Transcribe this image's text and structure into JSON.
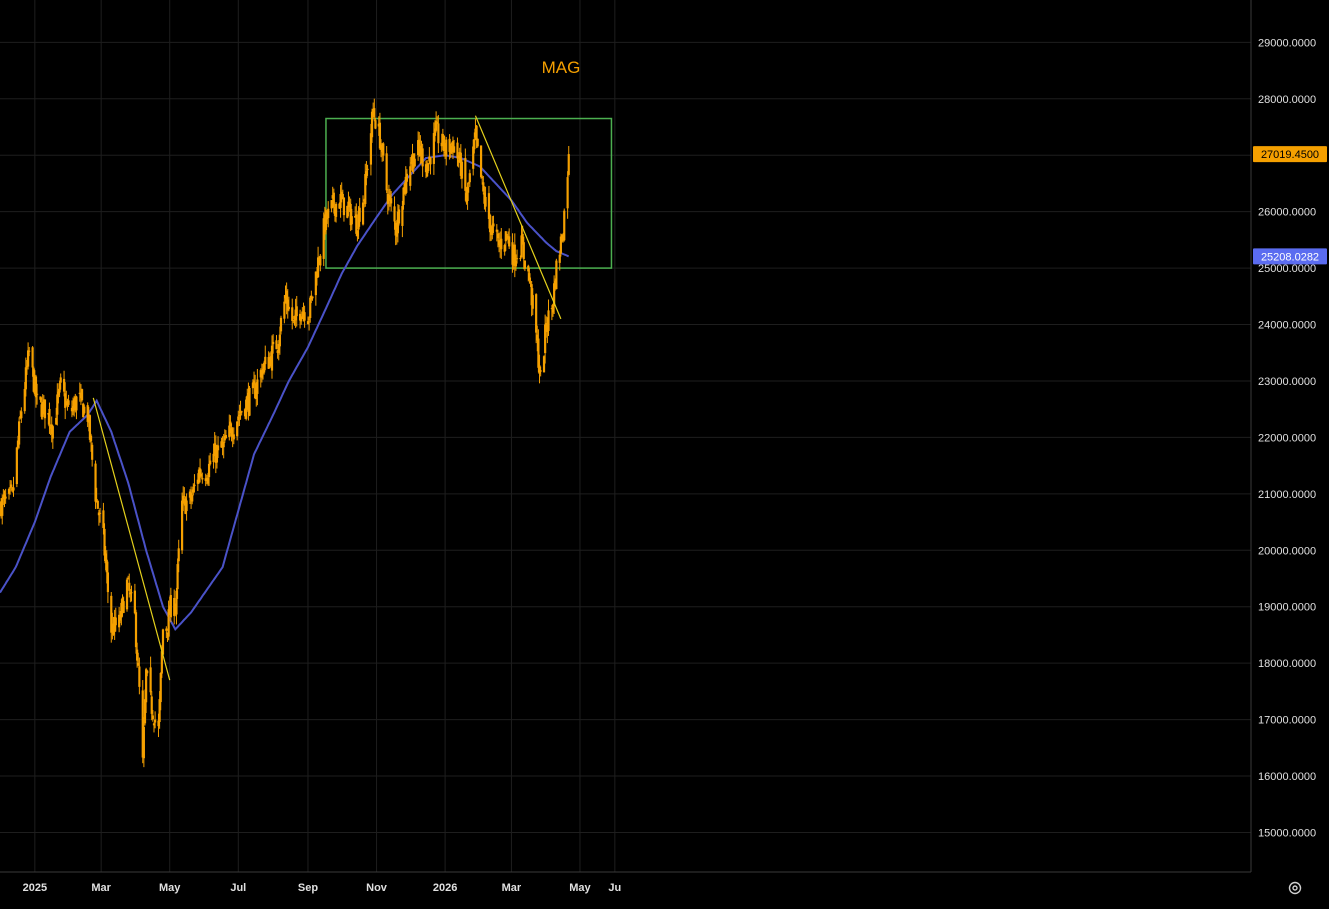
{
  "chart_data": {
    "type": "candlestick",
    "title": "MAG",
    "x_tick_labels": [
      "2025",
      "Mar",
      "May",
      "Jul",
      "Sep",
      "Nov",
      "2026",
      "Mar",
      "May",
      "Ju"
    ],
    "y_tick_labels": [
      "15000.0000",
      "16000.0000",
      "17000.0000",
      "18000.0000",
      "19000.0000",
      "20000.0000",
      "21000.0000",
      "22000.0000",
      "23000.0000",
      "24000.0000",
      "25000.0000",
      "26000.0000",
      "27000.0000",
      "28000.0000",
      "29000.0000"
    ],
    "ylim": [
      14300,
      29750
    ],
    "grid": true,
    "last_price_label": "27019.4500",
    "ma_value_label": "25208.0282",
    "start_date": "2024-12-01",
    "close_anchors": [
      [
        "2024-12-01",
        20800
      ],
      [
        "2024-12-12",
        20950
      ],
      [
        "2024-12-20",
        22500
      ],
      [
        "2024-12-27",
        23500
      ],
      [
        "2025-01-03",
        22600
      ],
      [
        "2025-01-10",
        22500
      ],
      [
        "2025-01-17",
        22200
      ],
      [
        "2025-01-24",
        22900
      ],
      [
        "2025-02-01",
        22400
      ],
      [
        "2025-02-08",
        22700
      ],
      [
        "2025-02-17",
        22400
      ],
      [
        "2025-02-24",
        21000
      ],
      [
        "2025-03-03",
        20200
      ],
      [
        "2025-03-10",
        18600
      ],
      [
        "2025-03-17",
        18700
      ],
      [
        "2025-03-24",
        19400
      ],
      [
        "2025-03-31",
        18800
      ],
      [
        "2025-04-04",
        17500
      ],
      [
        "2025-04-07",
        16200
      ],
      [
        "2025-04-10",
        17800
      ],
      [
        "2025-04-14",
        17300
      ],
      [
        "2025-04-21",
        16800
      ],
      [
        "2025-04-25",
        18600
      ],
      [
        "2025-04-29",
        18700
      ],
      [
        "2025-05-03",
        19100
      ],
      [
        "2025-05-06",
        19000
      ],
      [
        "2025-05-12",
        20800
      ],
      [
        "2025-05-20",
        20900
      ],
      [
        "2025-05-27",
        21400
      ],
      [
        "2025-06-03",
        21400
      ],
      [
        "2025-06-10",
        21700
      ],
      [
        "2025-06-17",
        21800
      ],
      [
        "2025-06-24",
        22100
      ],
      [
        "2025-07-01",
        22400
      ],
      [
        "2025-07-08",
        22600
      ],
      [
        "2025-07-15",
        22800
      ],
      [
        "2025-07-22",
        23200
      ],
      [
        "2025-07-29",
        23400
      ],
      [
        "2025-08-05",
        23700
      ],
      [
        "2025-08-12",
        24500
      ],
      [
        "2025-08-19",
        24000
      ],
      [
        "2025-08-26",
        24300
      ],
      [
        "2025-09-02",
        24200
      ],
      [
        "2025-09-09",
        25000
      ],
      [
        "2025-09-16",
        25800
      ],
      [
        "2025-09-23",
        26100
      ],
      [
        "2025-09-30",
        26200
      ],
      [
        "2025-10-07",
        26000
      ],
      [
        "2025-10-14",
        25800
      ],
      [
        "2025-10-21",
        26300
      ],
      [
        "2025-10-29",
        27800
      ],
      [
        "2025-11-04",
        27300
      ],
      [
        "2025-11-10",
        26400
      ],
      [
        "2025-11-18",
        25700
      ],
      [
        "2025-11-24",
        26300
      ],
      [
        "2025-12-01",
        26900
      ],
      [
        "2025-12-09",
        27100
      ],
      [
        "2025-12-16",
        26800
      ],
      [
        "2025-12-24",
        27400
      ],
      [
        "2026-01-01",
        27100
      ],
      [
        "2026-01-08",
        27200
      ],
      [
        "2026-01-15",
        26800
      ],
      [
        "2026-01-20",
        26200
      ],
      [
        "2026-01-28",
        27300
      ],
      [
        "2026-02-04",
        26300
      ],
      [
        "2026-02-11",
        25700
      ],
      [
        "2026-02-18",
        25400
      ],
      [
        "2026-02-25",
        25600
      ],
      [
        "2026-03-03",
        25200
      ],
      [
        "2026-03-10",
        25400
      ],
      [
        "2026-03-17",
        24800
      ],
      [
        "2026-03-22",
        24000
      ],
      [
        "2026-03-27",
        23000
      ],
      [
        "2026-04-01",
        24000
      ],
      [
        "2026-04-06",
        24300
      ],
      [
        "2026-04-10",
        25000
      ],
      [
        "2026-04-16",
        25700
      ],
      [
        "2026-04-21",
        27019.45
      ]
    ],
    "ma_anchors": [
      [
        "2024-12-01",
        19250
      ],
      [
        "2024-12-15",
        19700
      ],
      [
        "2025-01-01",
        20500
      ],
      [
        "2025-01-15",
        21300
      ],
      [
        "2025-02-01",
        22100
      ],
      [
        "2025-02-17",
        22400
      ],
      [
        "2025-02-25",
        22650
      ],
      [
        "2025-03-10",
        22100
      ],
      [
        "2025-03-25",
        21200
      ],
      [
        "2025-04-10",
        20000
      ],
      [
        "2025-04-25",
        19000
      ],
      [
        "2025-05-06",
        18600
      ],
      [
        "2025-05-20",
        18900
      ],
      [
        "2025-06-03",
        19300
      ],
      [
        "2025-06-17",
        19700
      ],
      [
        "2025-07-01",
        20700
      ],
      [
        "2025-07-15",
        21700
      ],
      [
        "2025-08-01",
        22400
      ],
      [
        "2025-08-15",
        23000
      ],
      [
        "2025-09-01",
        23600
      ],
      [
        "2025-09-15",
        24200
      ],
      [
        "2025-10-01",
        24900
      ],
      [
        "2025-10-15",
        25400
      ],
      [
        "2025-11-01",
        25900
      ],
      [
        "2025-11-15",
        26300
      ],
      [
        "2025-12-01",
        26650
      ],
      [
        "2025-12-15",
        26950
      ],
      [
        "2026-01-01",
        27000
      ],
      [
        "2026-01-15",
        26950
      ],
      [
        "2026-02-01",
        26800
      ],
      [
        "2026-02-15",
        26500
      ],
      [
        "2026-03-01",
        26200
      ],
      [
        "2026-03-15",
        25800
      ],
      [
        "2026-04-01",
        25450
      ],
      [
        "2026-04-10",
        25300
      ],
      [
        "2026-04-21",
        25208.03
      ]
    ],
    "box": {
      "x_start": "2025-09-17",
      "x_end": "2026-05-29",
      "y_low": 25000,
      "y_high": 27650,
      "color": "#4caf50"
    },
    "trendlines": [
      {
        "from": [
          "2025-02-22",
          22700
        ],
        "to": [
          "2025-05-01",
          17700
        ],
        "color": "#e6d21c"
      },
      {
        "from": [
          "2026-01-28",
          27700
        ],
        "to": [
          "2026-04-14",
          24100
        ],
        "color": "#e6d21c"
      }
    ],
    "colors": {
      "background": "#000000",
      "candle": "#f5a000",
      "moving_average": "#4a52c8",
      "grid": "#1e1e1e",
      "axis_text": "#e0e0e0",
      "title": "#f5a000",
      "last_price_tag": "#f5a000",
      "ma_tag": "#5b6cf0"
    }
  }
}
